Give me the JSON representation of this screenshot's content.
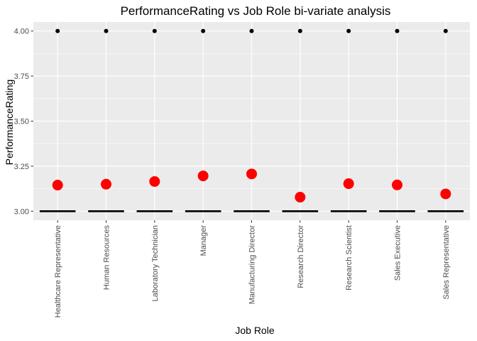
{
  "chart_data": {
    "type": "boxplot",
    "title": "PerformanceRating vs Job Role bi-variate analysis",
    "xlabel": "Job Role",
    "ylabel": "PerformanceRating",
    "ylim": [
      2.95,
      4.05
    ],
    "yticks": [
      3.0,
      3.25,
      3.5,
      3.75,
      4.0
    ],
    "ytick_labels": [
      "3.00",
      "3.25",
      "3.50",
      "3.75",
      "4.00"
    ],
    "grid": true,
    "categories": [
      "Healthcare Representative",
      "Human Resources",
      "Laboratory Technician",
      "Manager",
      "Manufacturing Director",
      "Research Director",
      "Research Scientist",
      "Sales Executive",
      "Sales Representative"
    ],
    "medians": [
      3,
      3,
      3,
      3,
      3,
      3,
      3,
      3,
      3
    ],
    "outliers": [
      4,
      4,
      4,
      4,
      4,
      4,
      4,
      4,
      4
    ],
    "means": [
      3.145,
      3.15,
      3.165,
      3.196,
      3.207,
      3.078,
      3.153,
      3.146,
      3.096
    ],
    "mean_marker_color": "#ff0000",
    "panel_color": "#ebebeb"
  }
}
